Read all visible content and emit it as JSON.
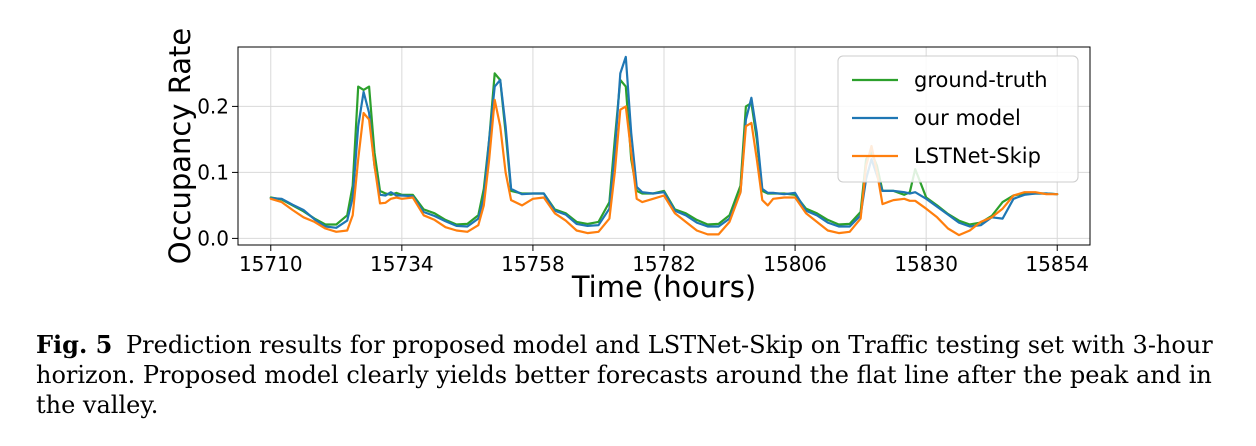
{
  "chart_data": {
    "type": "line",
    "xlabel": "Time (hours)",
    "ylabel": "Occupancy Rate",
    "xlim": [
      15704,
      15860
    ],
    "ylim": [
      -0.01,
      0.29
    ],
    "xticks": [
      15710,
      15734,
      15758,
      15782,
      15806,
      15830,
      15854
    ],
    "yticks": [
      0.0,
      0.1,
      0.2
    ],
    "ytick_labels": [
      "0.0",
      "0.1",
      "0.2"
    ],
    "grid": true,
    "legend_position": "top-right",
    "series": [
      {
        "name": "ground-truth",
        "color": "#2ca02c",
        "x": [
          15710,
          15712,
          15714,
          15716,
          15718,
          15720,
          15722,
          15724,
          15725,
          15726,
          15727,
          15728,
          15729,
          15730,
          15731,
          15732,
          15733,
          15734,
          15736,
          15738,
          15740,
          15742,
          15744,
          15746,
          15748,
          15749,
          15750,
          15751,
          15752,
          15753,
          15754,
          15756,
          15758,
          15760,
          15762,
          15764,
          15766,
          15768,
          15770,
          15772,
          15773,
          15774,
          15775,
          15776,
          15777,
          15778,
          15780,
          15782,
          15784,
          15786,
          15788,
          15790,
          15792,
          15794,
          15796,
          15797,
          15798,
          15799,
          15800,
          15801,
          15802,
          15804,
          15806,
          15808,
          15810,
          15812,
          15814,
          15816,
          15818,
          15819,
          15820,
          15821,
          15822,
          15824,
          15826,
          15827,
          15828,
          15830,
          15832,
          15834,
          15836,
          15838,
          15840,
          15842,
          15844,
          15846,
          15848,
          15850,
          15852,
          15854
        ],
        "y": [
          0.062,
          0.059,
          0.05,
          0.041,
          0.03,
          0.021,
          0.021,
          0.035,
          0.08,
          0.23,
          0.225,
          0.23,
          0.13,
          0.072,
          0.068,
          0.066,
          0.069,
          0.066,
          0.066,
          0.044,
          0.038,
          0.028,
          0.021,
          0.022,
          0.035,
          0.075,
          0.15,
          0.25,
          0.24,
          0.16,
          0.072,
          0.068,
          0.068,
          0.068,
          0.044,
          0.038,
          0.025,
          0.022,
          0.025,
          0.055,
          0.15,
          0.24,
          0.23,
          0.12,
          0.072,
          0.068,
          0.068,
          0.072,
          0.044,
          0.038,
          0.028,
          0.021,
          0.022,
          0.035,
          0.08,
          0.2,
          0.205,
          0.15,
          0.072,
          0.068,
          0.068,
          0.068,
          0.066,
          0.045,
          0.038,
          0.028,
          0.021,
          0.022,
          0.04,
          0.12,
          0.13,
          0.11,
          0.072,
          0.072,
          0.066,
          0.07,
          0.105,
          0.062,
          0.05,
          0.037,
          0.027,
          0.021,
          0.024,
          0.034,
          0.055,
          0.065,
          0.068,
          0.068,
          0.068,
          0.067
        ]
      },
      {
        "name": "our model",
        "color": "#1f77b4",
        "x": [
          15710,
          15712,
          15714,
          15716,
          15718,
          15720,
          15722,
          15724,
          15725,
          15726,
          15727,
          15728,
          15729,
          15730,
          15731,
          15732,
          15733,
          15734,
          15736,
          15738,
          15740,
          15742,
          15744,
          15746,
          15748,
          15749,
          15750,
          15751,
          15752,
          15753,
          15754,
          15756,
          15758,
          15760,
          15762,
          15764,
          15766,
          15768,
          15770,
          15772,
          15773,
          15774,
          15775,
          15776,
          15777,
          15778,
          15780,
          15782,
          15784,
          15786,
          15788,
          15790,
          15792,
          15794,
          15796,
          15797,
          15798,
          15799,
          15800,
          15801,
          15802,
          15804,
          15806,
          15808,
          15810,
          15812,
          15814,
          15816,
          15818,
          15819,
          15820,
          15821,
          15822,
          15824,
          15826,
          15827,
          15828,
          15830,
          15832,
          15834,
          15836,
          15838,
          15840,
          15842,
          15844,
          15846,
          15848,
          15850,
          15852,
          15854
        ],
        "y": [
          0.061,
          0.06,
          0.051,
          0.043,
          0.029,
          0.018,
          0.016,
          0.027,
          0.062,
          0.17,
          0.222,
          0.19,
          0.11,
          0.066,
          0.065,
          0.07,
          0.065,
          0.065,
          0.064,
          0.04,
          0.034,
          0.026,
          0.019,
          0.018,
          0.03,
          0.062,
          0.15,
          0.23,
          0.24,
          0.17,
          0.075,
          0.067,
          0.068,
          0.068,
          0.042,
          0.036,
          0.022,
          0.019,
          0.02,
          0.045,
          0.13,
          0.25,
          0.275,
          0.16,
          0.078,
          0.07,
          0.068,
          0.07,
          0.042,
          0.035,
          0.024,
          0.018,
          0.018,
          0.03,
          0.07,
          0.18,
          0.213,
          0.16,
          0.075,
          0.069,
          0.069,
          0.067,
          0.069,
          0.042,
          0.035,
          0.024,
          0.018,
          0.018,
          0.035,
          0.09,
          0.12,
          0.095,
          0.072,
          0.072,
          0.07,
          0.068,
          0.07,
          0.06,
          0.048,
          0.036,
          0.024,
          0.018,
          0.02,
          0.032,
          0.03,
          0.06,
          0.066,
          0.068,
          0.068,
          0.067
        ]
      },
      {
        "name": "LSTNet-Skip",
        "color": "#ff7f0e",
        "x": [
          15710,
          15712,
          15714,
          15716,
          15718,
          15720,
          15722,
          15724,
          15725,
          15726,
          15727,
          15728,
          15729,
          15730,
          15731,
          15732,
          15733,
          15734,
          15736,
          15738,
          15740,
          15742,
          15744,
          15746,
          15748,
          15749,
          15750,
          15751,
          15752,
          15753,
          15754,
          15756,
          15758,
          15760,
          15762,
          15764,
          15766,
          15768,
          15770,
          15772,
          15773,
          15774,
          15775,
          15776,
          15777,
          15778,
          15780,
          15782,
          15784,
          15786,
          15788,
          15790,
          15792,
          15794,
          15796,
          15797,
          15798,
          15799,
          15800,
          15801,
          15802,
          15804,
          15806,
          15808,
          15810,
          15812,
          15814,
          15816,
          15818,
          15819,
          15820,
          15821,
          15822,
          15824,
          15826,
          15827,
          15828,
          15830,
          15832,
          15834,
          15836,
          15838,
          15840,
          15842,
          15844,
          15846,
          15848,
          15850,
          15852,
          15854
        ],
        "y": [
          0.06,
          0.055,
          0.043,
          0.032,
          0.025,
          0.015,
          0.01,
          0.012,
          0.035,
          0.12,
          0.19,
          0.18,
          0.11,
          0.053,
          0.054,
          0.06,
          0.062,
          0.06,
          0.062,
          0.035,
          0.028,
          0.017,
          0.012,
          0.01,
          0.02,
          0.05,
          0.12,
          0.21,
          0.17,
          0.1,
          0.058,
          0.05,
          0.06,
          0.062,
          0.038,
          0.027,
          0.012,
          0.008,
          0.01,
          0.03,
          0.1,
          0.195,
          0.2,
          0.13,
          0.06,
          0.055,
          0.06,
          0.065,
          0.038,
          0.025,
          0.012,
          0.006,
          0.006,
          0.025,
          0.07,
          0.17,
          0.175,
          0.12,
          0.058,
          0.05,
          0.06,
          0.062,
          0.062,
          0.038,
          0.025,
          0.012,
          0.008,
          0.01,
          0.03,
          0.11,
          0.14,
          0.1,
          0.052,
          0.058,
          0.06,
          0.057,
          0.057,
          0.045,
          0.032,
          0.015,
          0.005,
          0.012,
          0.025,
          0.032,
          0.045,
          0.065,
          0.07,
          0.07,
          0.067,
          0.067
        ]
      }
    ]
  },
  "caption": {
    "label": "Fig. 5",
    "text": "Prediction results for proposed model and LSTNet-Skip on Traffic testing set with 3-hour horizon. Proposed model clearly yields better forecasts around the flat line after the peak and in the valley."
  }
}
